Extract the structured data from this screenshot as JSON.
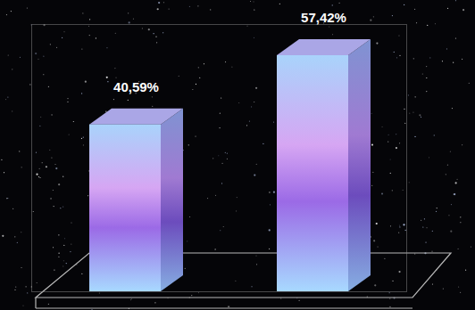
{
  "chart_data": {
    "type": "bar",
    "categories": [
      null,
      null
    ],
    "values": [
      40.59,
      57.42
    ],
    "value_labels": [
      "40,59%",
      "57,42%"
    ],
    "data_labels": true,
    "tick_labels": false,
    "ylim": [
      0,
      65
    ],
    "color": "#9b6ae6"
  }
}
